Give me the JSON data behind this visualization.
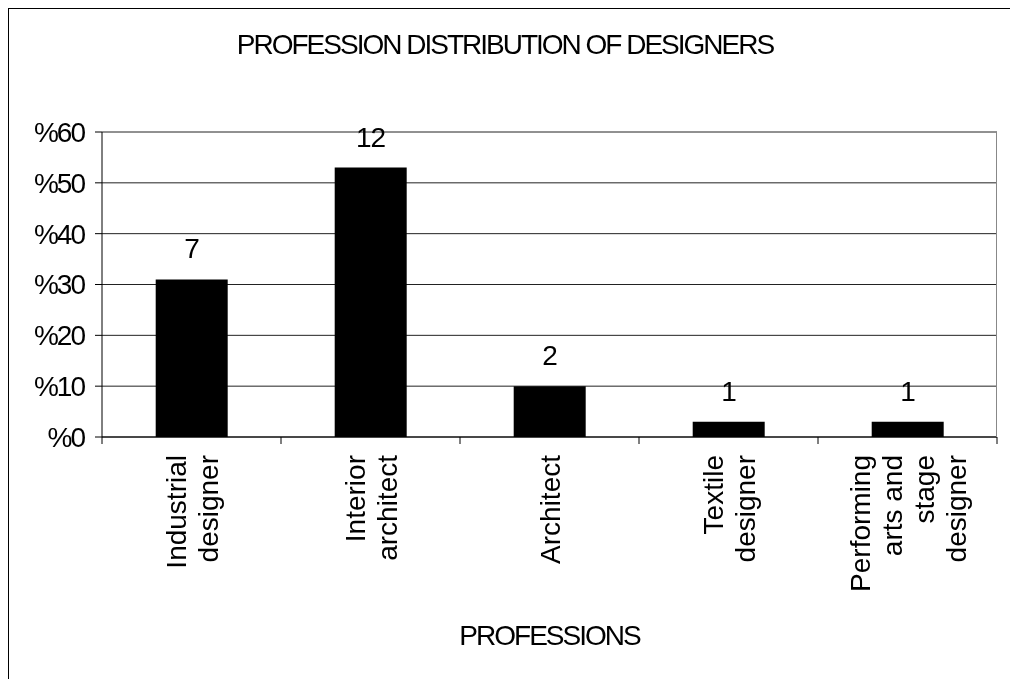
{
  "chart_data": {
    "type": "bar",
    "title": "PROFESSION DISTRIBUTION OF DESIGNERS",
    "xlabel": "PROFESSIONS",
    "categories": [
      "Industrial designer",
      "Interior architect",
      "Architect",
      "Textile designer",
      "Performing arts and stage designer"
    ],
    "values": [
      31,
      53,
      10,
      3,
      3
    ],
    "color": "#000000",
    "annotations": [
      {
        "text": "7",
        "x": "Industrial designer",
        "y": 31
      },
      {
        "text": "12",
        "x": "Interior architect",
        "y": 53
      },
      {
        "text": "2",
        "x": "Architect",
        "y": 10
      },
      {
        "text": "1",
        "x": "Textile designer",
        "y": 3
      },
      {
        "text": "1",
        "x": "Performing arts and stage designer",
        "y": 3
      }
    ],
    "ylim": [
      0,
      60
    ],
    "yticks": [
      {
        "value": 0,
        "label": "%0"
      },
      {
        "value": 10,
        "label": "%10"
      },
      {
        "value": 20,
        "label": "%20"
      },
      {
        "value": 30,
        "label": "%30"
      },
      {
        "value": 40,
        "label": "%40"
      },
      {
        "value": 50,
        "label": "%50"
      },
      {
        "value": 60,
        "label": "%60"
      }
    ],
    "grid": "y"
  }
}
